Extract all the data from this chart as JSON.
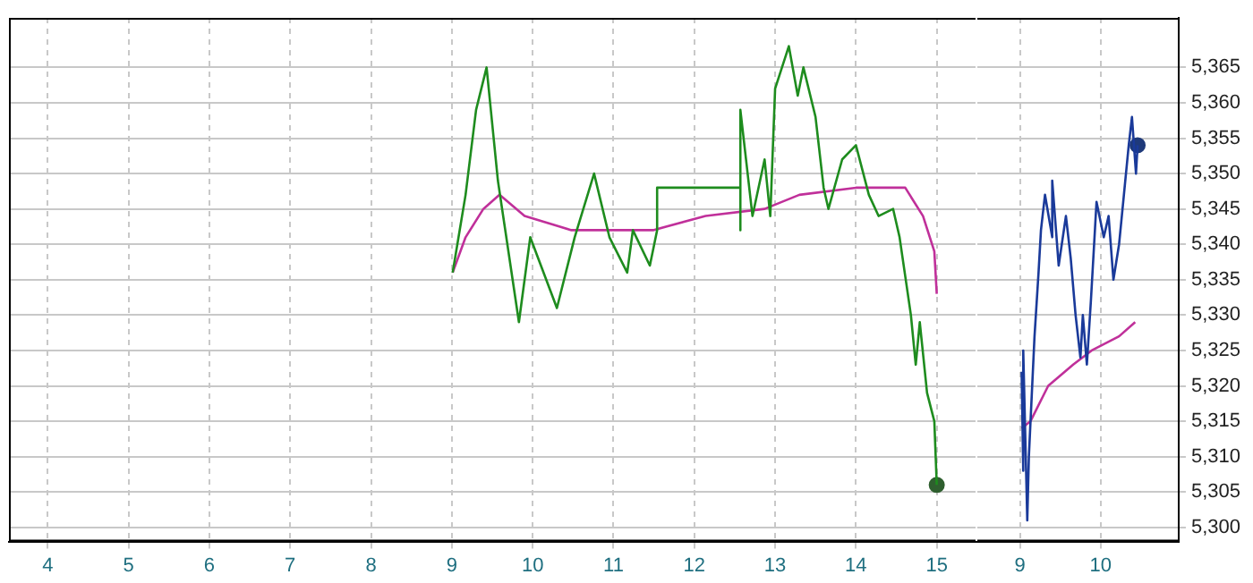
{
  "chart_data": [
    {
      "type": "line",
      "xlim": [
        3.52,
        15.48
      ],
      "ylim": [
        5298,
        5372
      ],
      "tick_labels": "x",
      "xticks": [
        4,
        5,
        6,
        7,
        8,
        9,
        10,
        11,
        12,
        13,
        14,
        15
      ],
      "yticks": [
        5300,
        5305,
        5310,
        5315,
        5320,
        5325,
        5330,
        5335,
        5340,
        5345,
        5350,
        5355,
        5360,
        5365
      ],
      "grid": true,
      "marker": "none",
      "line_style": "solid",
      "series": [
        {
          "type": "line",
          "color": "#1e8c1e",
          "x": [
            9.01,
            9.17,
            9.3,
            9.43,
            9.57,
            9.83,
            9.97,
            10.3,
            10.52,
            10.76,
            10.95,
            11.17,
            11.24,
            11.45,
            11.54,
            11.54,
            12.57,
            12.57,
            12.57,
            12.72,
            12.87,
            12.94,
            13.0,
            13.17,
            13.28,
            13.35,
            13.5,
            13.6,
            13.66,
            13.83,
            14.0,
            14.16,
            14.28,
            14.46,
            14.54,
            14.68,
            14.74,
            14.79,
            14.88,
            14.97,
            15.0
          ],
          "values": [
            5336,
            5347,
            5359,
            5365,
            5349,
            5329,
            5341,
            5331,
            5341,
            5350,
            5341,
            5336,
            5342,
            5337,
            5342,
            5348,
            5348,
            5342,
            5359,
            5344,
            5352,
            5344,
            5362,
            5368,
            5361,
            5365,
            5358,
            5348,
            5345,
            5352,
            5354,
            5347,
            5344,
            5345,
            5341,
            5330,
            5323,
            5329,
            5319,
            5315,
            5306
          ]
        },
        {
          "type": "line",
          "color": "#c0309a",
          "x": [
            9.01,
            9.17,
            9.39,
            9.59,
            9.9,
            10.48,
            10.91,
            11.49,
            12.14,
            12.87,
            13.3,
            14.0,
            14.61,
            14.83,
            14.97,
            15.0
          ],
          "values": [
            5336,
            5341,
            5345,
            5347,
            5344,
            5342,
            5342,
            5342,
            5344,
            5345,
            5347,
            5348,
            5348,
            5344,
            5339,
            5333
          ]
        },
        {
          "type": "scatter",
          "marker": "circle",
          "color": "#2f5f2f",
          "x": [
            15.0
          ],
          "values": [
            5306
          ]
        }
      ]
    },
    {
      "type": "line",
      "xlim": [
        8.47,
        10.97
      ],
      "ylim": [
        5298,
        5372
      ],
      "xticks": [
        9,
        10
      ],
      "yticks": [
        {
          "value": 5300,
          "label": "5,300"
        },
        {
          "value": 5305,
          "label": "5,305"
        },
        {
          "value": 5310,
          "label": "5,310"
        },
        {
          "value": 5315,
          "label": "5,315"
        },
        {
          "value": 5320,
          "label": "5,320"
        },
        {
          "value": 5325,
          "label": "5,325"
        },
        {
          "value": 5330,
          "label": "5,330"
        },
        {
          "value": 5335,
          "label": "5,335"
        },
        {
          "value": 5340,
          "label": "5,340"
        },
        {
          "value": 5345,
          "label": "5,345"
        },
        {
          "value": 5350,
          "label": "5,350"
        },
        {
          "value": 5355,
          "label": "5,355"
        },
        {
          "value": 5360,
          "label": "5,360"
        },
        {
          "value": 5365,
          "label": "5,365"
        }
      ],
      "grid": true,
      "marker": "none",
      "line_style": "solid",
      "series": [
        {
          "type": "line",
          "color": "#1a3a9a",
          "x": [
            9.02,
            9.04,
            9.04,
            9.09,
            9.11,
            9.18,
            9.23,
            9.26,
            9.31,
            9.4,
            9.4,
            9.48,
            9.57,
            9.63,
            9.69,
            9.75,
            9.78,
            9.83,
            9.88,
            9.95,
            10.04,
            10.1,
            10.16,
            10.23,
            10.29,
            10.35,
            10.39,
            10.44,
            10.46
          ],
          "values": [
            5322,
            5308,
            5325,
            5301,
            5310,
            5327,
            5336,
            5342,
            5347,
            5341,
            5349,
            5337,
            5344,
            5338,
            5330,
            5324,
            5330,
            5323,
            5332,
            5346,
            5341,
            5344,
            5335,
            5340,
            5347,
            5354,
            5358,
            5350,
            5354
          ]
        },
        {
          "type": "line",
          "color": "#c0309a",
          "x": [
            9.02,
            9.13,
            9.35,
            9.66,
            9.89,
            10.23,
            10.43
          ],
          "values": [
            5314,
            5315,
            5320,
            5323,
            5325,
            5327,
            5329
          ]
        },
        {
          "type": "scatter",
          "marker": "circle",
          "color": "#1f3a7a",
          "x": [
            10.46
          ],
          "values": [
            5354
          ]
        }
      ]
    }
  ]
}
